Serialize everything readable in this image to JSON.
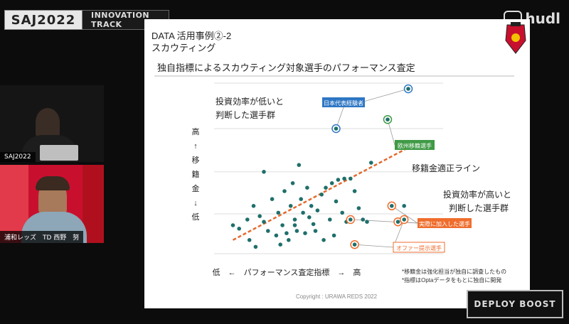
{
  "header": {
    "brand": "SAJ2022",
    "track": "INNOVATION TRACK",
    "logo": "hudl"
  },
  "webcam1": {
    "label": "SAJ2022"
  },
  "webcam2": {
    "label": "浦和レッズ　TD 西野　努"
  },
  "slide": {
    "title_line1": "DATA 活用事例②-2",
    "title_line2": "スカウティング",
    "subtitle": "独自指標によるスカウティング対象選手のパフォーマンス査定",
    "annotation_low_line1": "投資効率が低いと",
    "annotation_low_line2": "判断した選手群",
    "annotation_high_line1": "投資効率が高いと",
    "annotation_high_line2": "判断した選手群",
    "trend_label": "移籍金適正ライン",
    "tag_national": "日本代表経験者",
    "tag_europe": "欧州移籍選手",
    "tag_joined": "実際に加入した選手",
    "tag_offer": "オファー提示選手",
    "y_axis": [
      "高",
      "↑",
      "移",
      "籍",
      "金",
      "↓",
      "低"
    ],
    "x_axis": "低　←　パフォーマンス査定指標　→　高",
    "note1": "*移籍金は強化担当が独自に調査したもの",
    "note2": "*指標はOptaデータをもとに独自に開発",
    "copyright": "Copyright : URAWA REDS 2022"
  },
  "footer_logo": "DEPLOY BOOST",
  "colors": {
    "dot": "#1f6f6b",
    "trend": "#e36b2d",
    "tag_blue": "#2e77c4",
    "tag_green": "#3f9a45",
    "tag_orange": "#ef6d2d"
  },
  "chart_data": {
    "type": "scatter",
    "xlabel": "低　←　パフォーマンス査定指標　→　高",
    "ylabel": "移籍金",
    "points": [
      [
        0.05,
        0.25
      ],
      [
        0.08,
        0.22
      ],
      [
        0.12,
        0.3
      ],
      [
        0.13,
        0.12
      ],
      [
        0.15,
        0.42
      ],
      [
        0.18,
        0.33
      ],
      [
        0.2,
        0.28
      ],
      [
        0.22,
        0.2
      ],
      [
        0.24,
        0.48
      ],
      [
        0.26,
        0.16
      ],
      [
        0.27,
        0.36
      ],
      [
        0.29,
        0.25
      ],
      [
        0.3,
        0.55
      ],
      [
        0.31,
        0.18
      ],
      [
        0.33,
        0.42
      ],
      [
        0.34,
        0.62
      ],
      [
        0.35,
        0.3
      ],
      [
        0.36,
        0.2
      ],
      [
        0.37,
        0.78
      ],
      [
        0.38,
        0.48
      ],
      [
        0.39,
        0.36
      ],
      [
        0.4,
        0.18
      ],
      [
        0.41,
        0.58
      ],
      [
        0.42,
        0.32
      ],
      [
        0.43,
        0.42
      ],
      [
        0.44,
        0.26
      ],
      [
        0.45,
        0.2
      ],
      [
        0.46,
        0.38
      ],
      [
        0.48,
        0.52
      ],
      [
        0.49,
        0.12
      ],
      [
        0.5,
        0.58
      ],
      [
        0.52,
        0.3
      ],
      [
        0.53,
        0.62
      ],
      [
        0.54,
        0.16
      ],
      [
        0.55,
        0.46
      ],
      [
        0.56,
        0.65
      ],
      [
        0.58,
        0.36
      ],
      [
        0.59,
        0.66
      ],
      [
        0.6,
        0.28
      ],
      [
        0.62,
        0.66
      ],
      [
        0.64,
        0.55
      ],
      [
        0.66,
        0.4
      ],
      [
        0.68,
        0.3
      ],
      [
        0.7,
        0.28
      ],
      [
        0.72,
        0.8
      ],
      [
        0.35,
        0.25
      ],
      [
        0.32,
        0.12
      ],
      [
        0.28,
        0.08
      ],
      [
        0.16,
        0.06
      ],
      [
        0.88,
        0.42
      ],
      [
        0.2,
        0.72
      ]
    ],
    "highlighted_points": [
      {
        "x": 0.62,
        "y": 0.3,
        "group": "実際に加入した選手"
      },
      {
        "x": 0.82,
        "y": 0.42,
        "group": "実際に加入した選手"
      },
      {
        "x": 0.85,
        "y": 0.28,
        "group": "実際に加入した選手"
      },
      {
        "x": 0.64,
        "y": 0.08,
        "group": "オファー提示選手"
      },
      {
        "x": 0.88,
        "y": 0.3,
        "group": "オファー提示選手"
      },
      {
        "x": 0.55,
        "y": 1.1,
        "group": "日本代表経験者"
      },
      {
        "x": 0.9,
        "y": 1.45,
        "group": "日本代表経験者"
      },
      {
        "x": 0.8,
        "y": 1.18,
        "group": "欧州移籍選手"
      }
    ],
    "trend_line": {
      "from": [
        0.05,
        0.12
      ],
      "to": [
        0.95,
        0.98
      ]
    },
    "grid": true
  }
}
